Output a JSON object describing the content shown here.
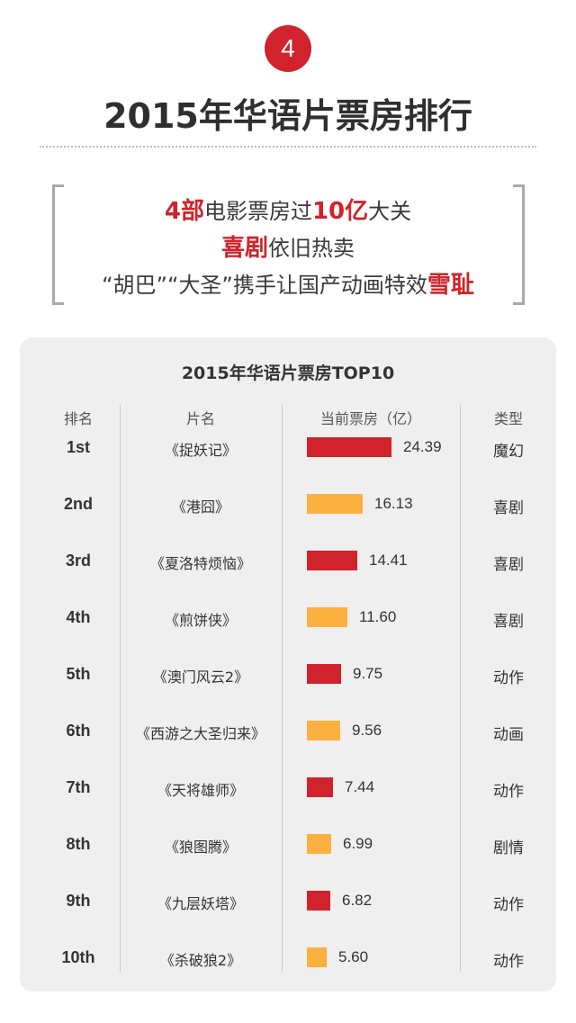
{
  "badge": "4",
  "title": "2015年华语片票房排行",
  "summary": {
    "line1": {
      "red1": "4部",
      "text1": "电影票房过",
      "red2": "10亿",
      "text2": "大关"
    },
    "line2": {
      "red1": "喜剧",
      "text1": "依旧热卖"
    },
    "line3": {
      "text1": "“胡巴”“大圣”携手让国产动画特效",
      "red1": "雪耻"
    }
  },
  "table_headers": {
    "rank": "排名",
    "film": "片名",
    "box_office": "当前票房（亿）",
    "genre": "类型"
  },
  "colors": {
    "red": "#d0232b",
    "orange": "#fbb040"
  },
  "chart_data": {
    "type": "bar",
    "title": "2015年华语片票房TOP10",
    "ylabel": "当前票房（亿）",
    "categories": [
      "《捉妖记》",
      "《港囧》",
      "《夏洛特烦恼》",
      "《煎饼侠》",
      "《澳门风云2》",
      "《西游之大圣归来》",
      "《天将雄师》",
      "《狼图腾》",
      "《九层妖塔》",
      "《杀破狼2》"
    ],
    "values": [
      24.39,
      16.13,
      14.41,
      11.6,
      9.75,
      9.56,
      7.44,
      6.99,
      6.82,
      5.6
    ],
    "value_labels": [
      "24.39",
      "16.13",
      "14.41",
      "11.60",
      "9.75",
      "9.56",
      "7.44",
      "6.99",
      "6.82",
      "5.60"
    ],
    "ranks": [
      "1st",
      "2nd",
      "3rd",
      "4th",
      "5th",
      "6th",
      "7th",
      "8th",
      "9th",
      "10th"
    ],
    "genres": [
      "魔幻",
      "喜剧",
      "喜剧",
      "喜剧",
      "动作",
      "动画",
      "动作",
      "剧情",
      "动作",
      "动作"
    ],
    "bar_colors": [
      "red",
      "orange",
      "red",
      "orange",
      "red",
      "orange",
      "red",
      "orange",
      "red",
      "orange"
    ]
  }
}
